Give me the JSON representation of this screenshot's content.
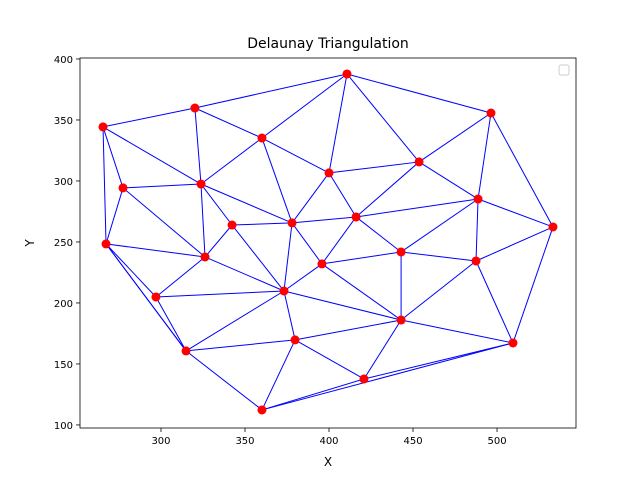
{
  "chart_data": {
    "type": "scatter",
    "title": "Delaunay Triangulation",
    "xlabel": "X",
    "ylabel": "Y",
    "x": [
      265.5,
      320.2,
      410.7,
      496.4,
      360.1,
      400.0,
      453.6,
      277.4,
      323.8,
      488.7,
      342.3,
      378.0,
      416.1,
      533.3,
      267.3,
      326.2,
      442.9,
      395.8,
      487.5,
      297.0,
      373.2,
      442.9,
      314.9,
      379.8,
      509.5,
      420.8,
      360.1
    ],
    "y": [
      344.3,
      359.8,
      387.7,
      355.7,
      335.2,
      306.6,
      315.6,
      294.3,
      297.5,
      285.2,
      263.9,
      265.6,
      270.5,
      262.3,
      248.4,
      237.7,
      241.8,
      232.0,
      234.4,
      204.9,
      209.8,
      186.0,
      160.7,
      169.7,
      167.2,
      137.7,
      112.3
    ],
    "edges": [
      [
        0,
        1
      ],
      [
        1,
        2
      ],
      [
        2,
        3
      ],
      [
        3,
        13
      ],
      [
        13,
        24
      ],
      [
        24,
        26
      ],
      [
        26,
        22
      ],
      [
        22,
        14
      ],
      [
        14,
        0
      ],
      [
        24,
        25
      ],
      [
        0,
        8
      ],
      [
        0,
        7
      ],
      [
        1,
        4
      ],
      [
        1,
        8
      ],
      [
        2,
        4
      ],
      [
        2,
        5
      ],
      [
        2,
        6
      ],
      [
        3,
        6
      ],
      [
        3,
        9
      ],
      [
        4,
        5
      ],
      [
        4,
        8
      ],
      [
        4,
        11
      ],
      [
        5,
        6
      ],
      [
        5,
        12
      ],
      [
        5,
        11
      ],
      [
        6,
        12
      ],
      [
        6,
        9
      ],
      [
        7,
        8
      ],
      [
        7,
        14
      ],
      [
        7,
        15
      ],
      [
        8,
        10
      ],
      [
        8,
        11
      ],
      [
        8,
        15
      ],
      [
        14,
        15
      ],
      [
        14,
        19
      ],
      [
        14,
        22
      ],
      [
        10,
        11
      ],
      [
        10,
        15
      ],
      [
        10,
        20
      ],
      [
        11,
        12
      ],
      [
        11,
        17
      ],
      [
        11,
        20
      ],
      [
        15,
        20
      ],
      [
        15,
        19
      ],
      [
        19,
        20
      ],
      [
        19,
        22
      ],
      [
        22,
        20
      ],
      [
        22,
        23
      ],
      [
        20,
        23
      ],
      [
        20,
        21
      ],
      [
        20,
        17
      ],
      [
        23,
        21
      ],
      [
        23,
        25
      ],
      [
        23,
        26
      ],
      [
        26,
        25
      ],
      [
        25,
        21
      ],
      [
        21,
        24
      ],
      [
        21,
        16
      ],
      [
        21,
        18
      ],
      [
        21,
        17
      ],
      [
        17,
        16
      ],
      [
        17,
        12
      ],
      [
        12,
        16
      ],
      [
        12,
        9
      ],
      [
        16,
        9
      ],
      [
        16,
        18
      ],
      [
        9,
        18
      ],
      [
        9,
        13
      ],
      [
        18,
        13
      ],
      [
        18,
        24
      ]
    ],
    "edge_color": "#0000ff",
    "color": "#ff0000",
    "xlim": [
      251.8,
      547.0
    ],
    "ylim": [
      97.5,
      400.8
    ],
    "xticks": [
      300,
      350,
      400,
      450,
      500
    ],
    "yticks": [
      100,
      150,
      200,
      250,
      300,
      350,
      400
    ],
    "legend": "upper right"
  }
}
